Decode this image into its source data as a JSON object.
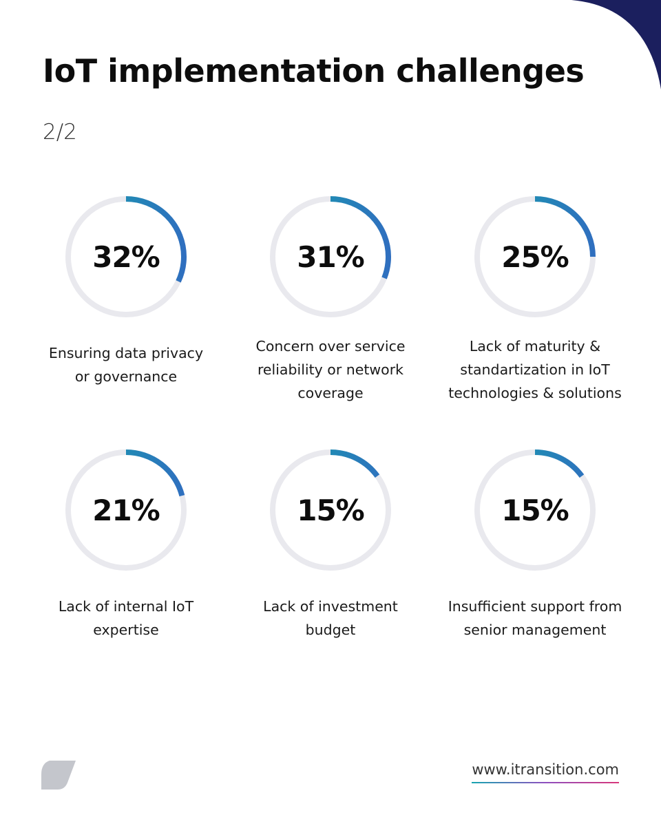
{
  "header": {
    "title": "IoT implementation challenges",
    "page_indicator": "2/2"
  },
  "colors": {
    "ring_track": "#e9e9ee",
    "ring_gradient_start": "#14a3ab",
    "ring_gradient_end": "#2f6fbf",
    "corner_accent": "#1b1f5e",
    "logo": "#c4c6cc"
  },
  "chart_data": {
    "type": "pie",
    "title": "IoT implementation challenges",
    "categories": [
      "Ensuring data privacy\nor governance",
      "Concern over service\nreliability or network\ncoverage",
      "Lack of maturity &\nstandartization in IoT\ntechnologies & solutions",
      "Lack of internal IoT\nexpertise",
      "Lack of investment\nbudget",
      "Insufficient support from\nsenior management"
    ],
    "values": [
      32,
      31,
      25,
      21,
      15,
      15
    ],
    "display_values": [
      "32%",
      "31%",
      "25%",
      "21%",
      "15%",
      "15%"
    ],
    "unit": "%",
    "max": 100
  },
  "footer": {
    "url": "www.itransition.com",
    "logo_icon": "itransition-leaf-logo-icon"
  }
}
